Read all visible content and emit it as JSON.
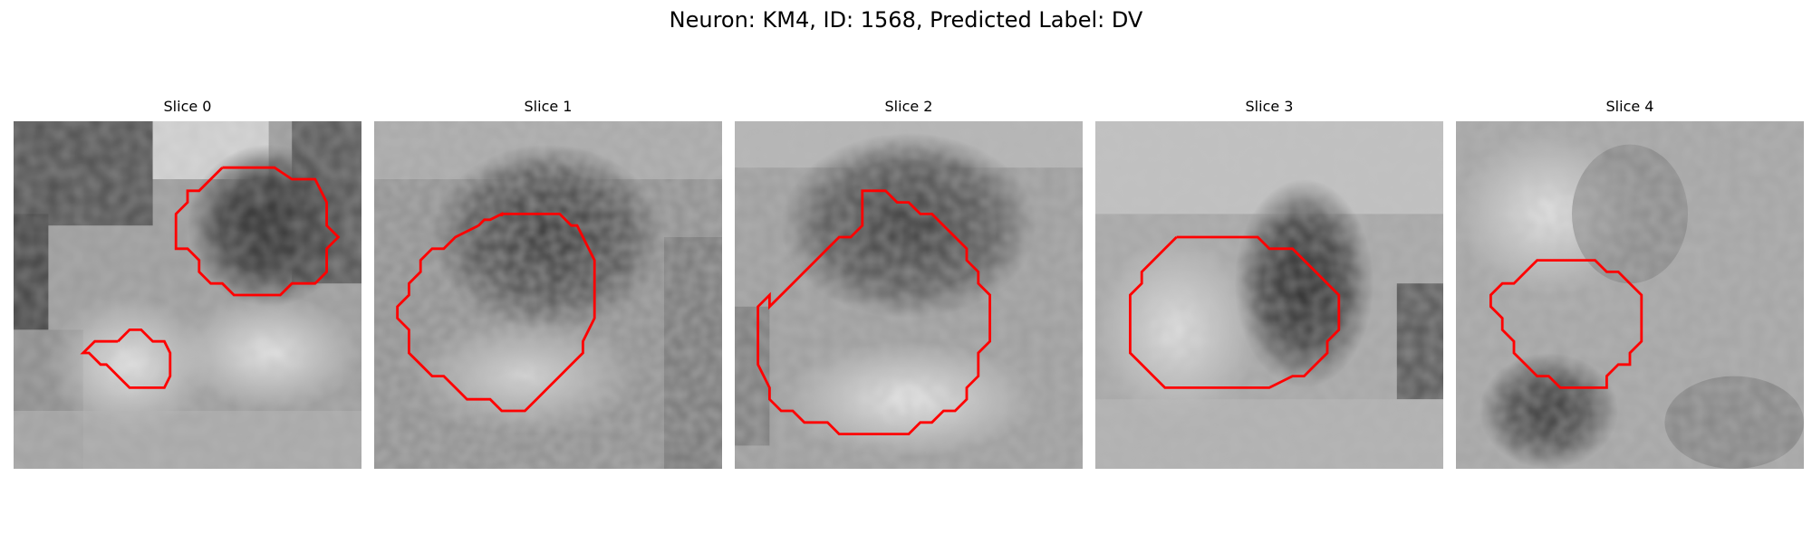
{
  "figure": {
    "title": "Neuron: KM4, ID: 1568, Predicted Label: DV",
    "outline_color": "#ff0000"
  },
  "panels": [
    {
      "title": "Slice 0"
    },
    {
      "title": "Slice 1"
    },
    {
      "title": "Slice 2"
    },
    {
      "title": "Slice 3"
    },
    {
      "title": "Slice 4"
    }
  ]
}
